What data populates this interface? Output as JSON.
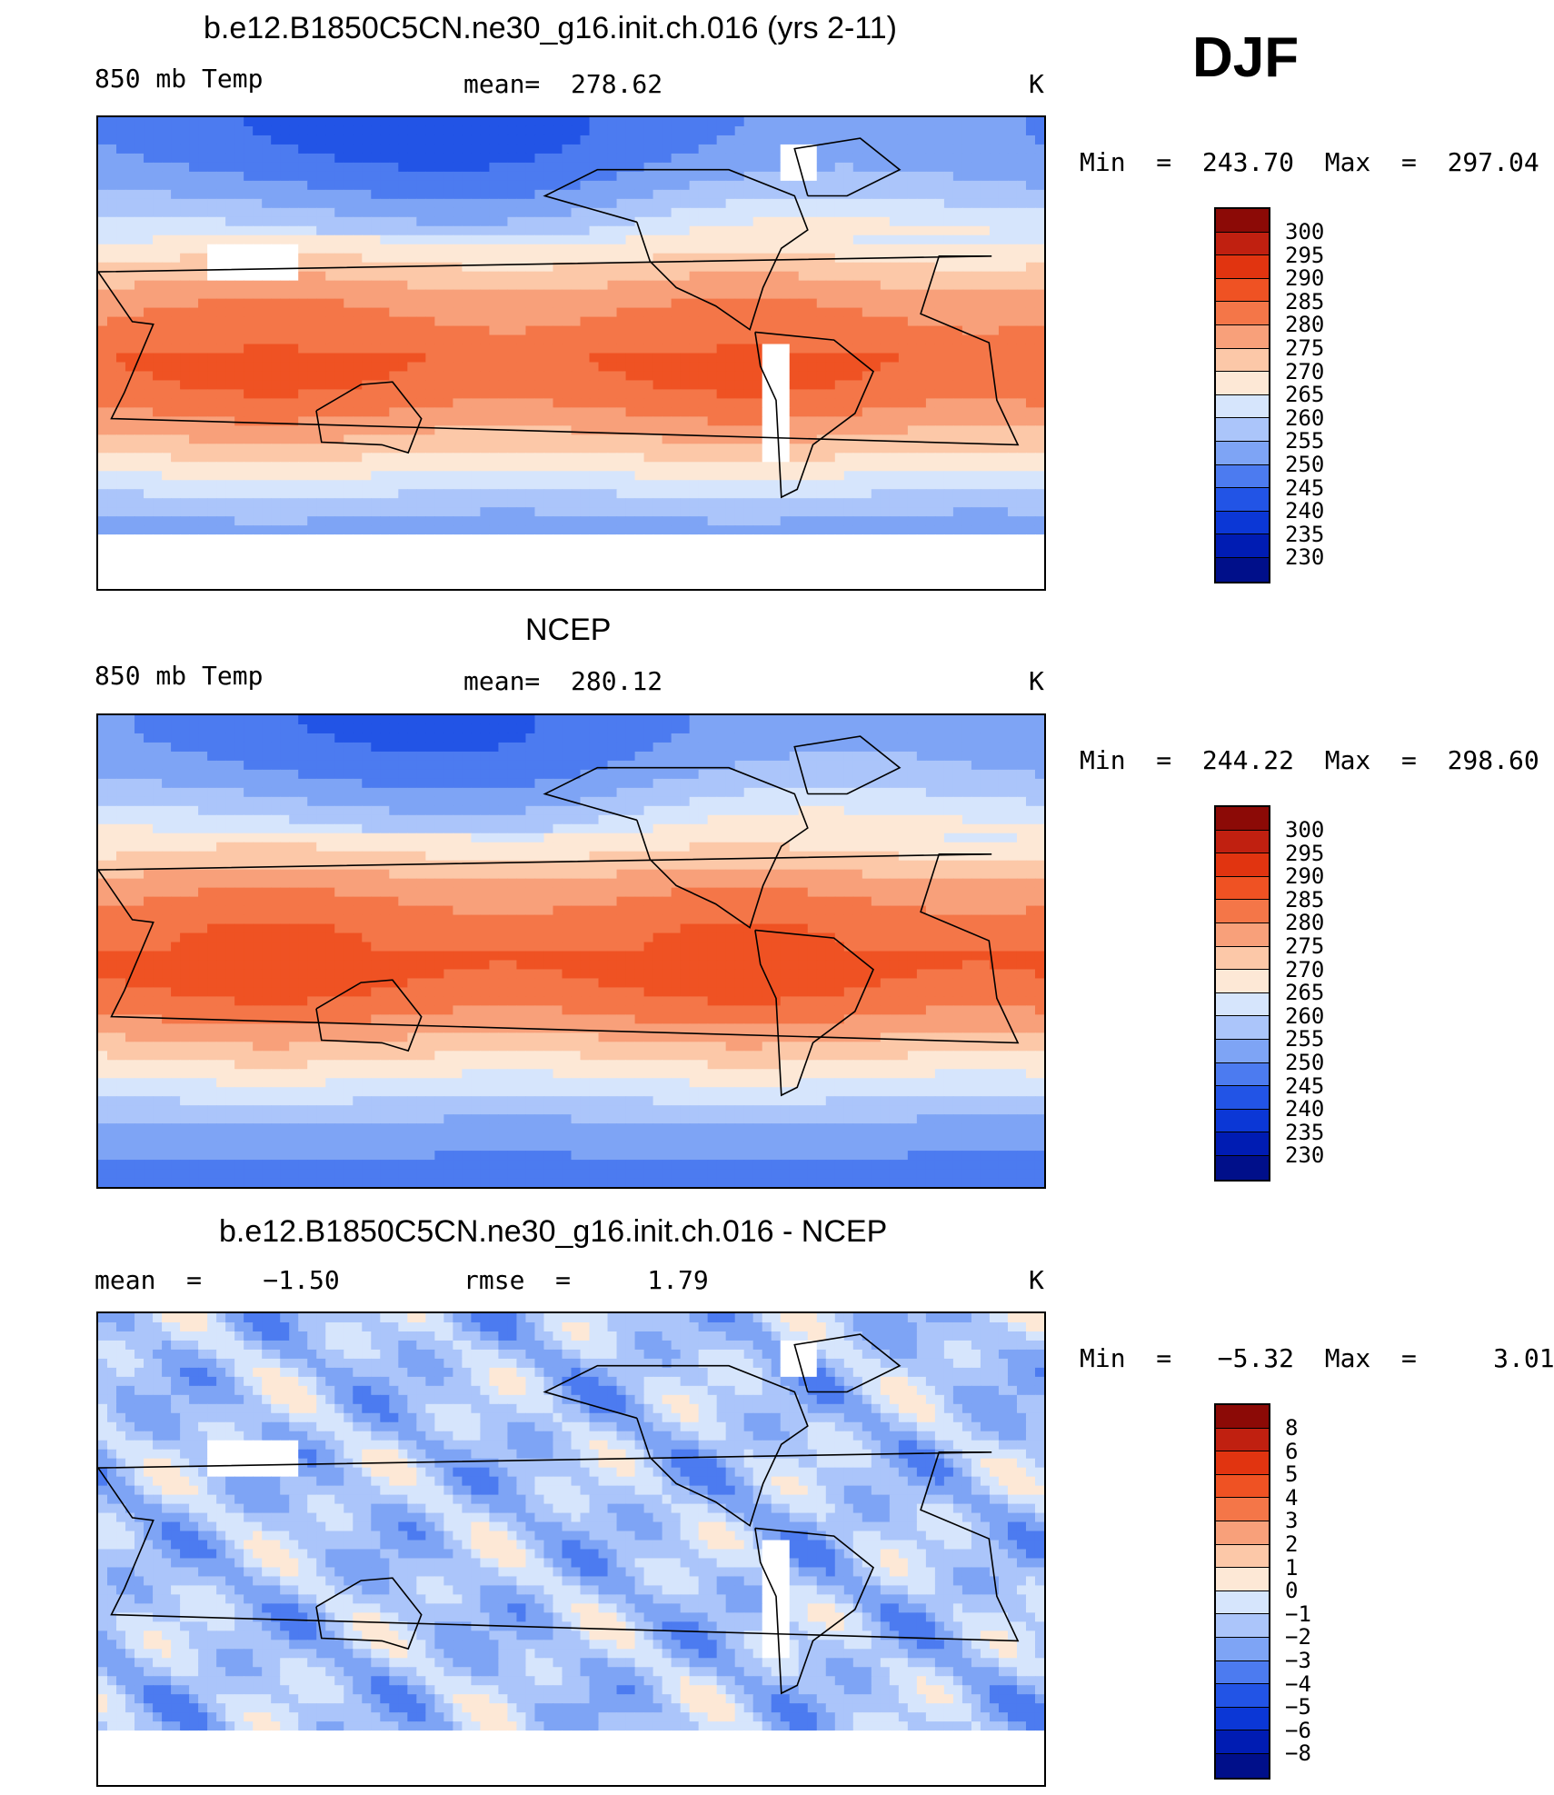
{
  "season": "DJF",
  "palettes": {
    "abs": [
      "#000f8a",
      "#001cb3",
      "#0b37d6",
      "#2254e6",
      "#4c7bf0",
      "#7ea4f5",
      "#abc5fa",
      "#d6e5fc",
      "#fde8d6",
      "#fcc8a8",
      "#f8a07a",
      "#f47648",
      "#ef5223",
      "#e13410",
      "#c02010",
      "#8c0a06"
    ],
    "diff": [
      "#000f8a",
      "#001cb3",
      "#0b37d6",
      "#2254e6",
      "#4c7bf0",
      "#7ea4f5",
      "#abc5fa",
      "#d6e5fc",
      "#fde8d6",
      "#fcc8a8",
      "#f8a07a",
      "#f47648",
      "#ef5223",
      "#e13410",
      "#c02010",
      "#8c0a06"
    ]
  },
  "panels": [
    {
      "title": "b.e12.B1850C5CN.ne30_g16.init.ch.016 (yrs 2-11)",
      "left_label": "850 mb Temp",
      "center_label": "mean=  278.62",
      "units": "K",
      "minmax": "Min  =  243.70  Max  =  297.04",
      "colorbar_labels": [
        "300",
        "295",
        "290",
        "285",
        "280",
        "275",
        "270",
        "265",
        "260",
        "255",
        "250",
        "245",
        "240",
        "235",
        "230"
      ],
      "field": "model"
    },
    {
      "title": "NCEP",
      "left_label": "850 mb Temp",
      "center_label": "mean=  280.12",
      "units": "K",
      "minmax": "Min  =  244.22  Max  =  298.60",
      "colorbar_labels": [
        "300",
        "295",
        "290",
        "285",
        "280",
        "275",
        "270",
        "265",
        "260",
        "255",
        "250",
        "245",
        "240",
        "235",
        "230"
      ],
      "field": "obs"
    },
    {
      "title": "b.e12.B1850C5CN.ne30_g16.init.ch.016 - NCEP",
      "left_label": "mean  =    −1.50",
      "center_label": "rmse  =     1.79",
      "units": "K",
      "minmax": "Min  =   −5.32  Max  =     3.01",
      "colorbar_labels": [
        "8",
        "6",
        "5",
        "4",
        "3",
        "2",
        "1",
        "0",
        "−1",
        "−2",
        "−3",
        "−4",
        "−5",
        "−6",
        "−8"
      ],
      "field": "diff"
    }
  ]
}
